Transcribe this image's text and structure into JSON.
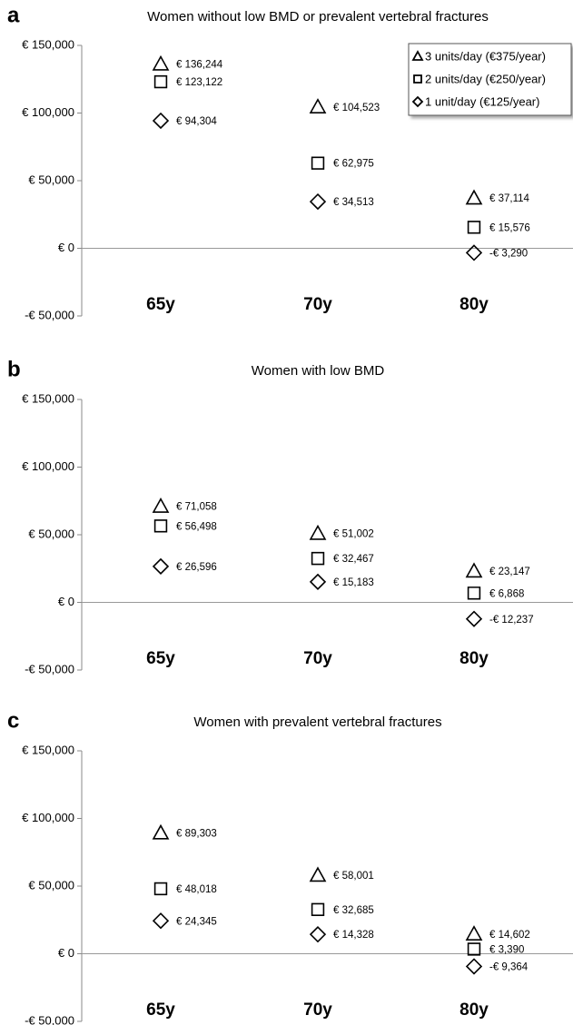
{
  "chart_data": [
    {
      "type": "scatter",
      "panel": "a",
      "title": "Women without low BMD or prevalent vertebral fractures",
      "categories": [
        "65y",
        "70y",
        "80y"
      ],
      "ylim": [
        -50000,
        150000
      ],
      "yticks": [
        {
          "value": -50000,
          "label": "-€ 50,000"
        },
        {
          "value": 0,
          "label": "€ 0"
        },
        {
          "value": 50000,
          "label": "€ 50,000"
        },
        {
          "value": 100000,
          "label": "€ 100,000"
        },
        {
          "value": 150000,
          "label": "€ 150,000"
        }
      ],
      "legend": "upper right",
      "series": [
        {
          "name": "3 units/day (€375/year)",
          "marker": "triangle",
          "color": "#000000",
          "values": [
            136244,
            104523,
            37114
          ],
          "value_labels": [
            "€ 136,244",
            "€ 104,523",
            "€ 37,114"
          ]
        },
        {
          "name": "2 units/day (€250/year)",
          "marker": "square",
          "color": "#000000",
          "values": [
            123122,
            62975,
            15576
          ],
          "value_labels": [
            "€ 123,122",
            "€ 62,975",
            "€ 15,576"
          ]
        },
        {
          "name": "1 unit/day (€125/year)",
          "marker": "diamond",
          "color": "#000000",
          "values": [
            94304,
            34513,
            -3290
          ],
          "value_labels": [
            "€ 94,304",
            "€ 34,513",
            "-€ 3,290"
          ]
        }
      ]
    },
    {
      "type": "scatter",
      "panel": "b",
      "title": "Women with low BMD",
      "categories": [
        "65y",
        "70y",
        "80y"
      ],
      "ylim": [
        -50000,
        150000
      ],
      "yticks": [
        {
          "value": -50000,
          "label": "-€ 50,000"
        },
        {
          "value": 0,
          "label": "€ 0"
        },
        {
          "value": 50000,
          "label": "€ 50,000"
        },
        {
          "value": 100000,
          "label": "€ 100,000"
        },
        {
          "value": 150000,
          "label": "€ 150,000"
        }
      ],
      "series": [
        {
          "marker": "triangle",
          "color": "#000000",
          "values": [
            71058,
            51002,
            23147
          ],
          "value_labels": [
            "€ 71,058",
            "€ 51,002",
            "€ 23,147"
          ]
        },
        {
          "marker": "square",
          "color": "#000000",
          "values": [
            56498,
            32467,
            6868
          ],
          "value_labels": [
            "€ 56,498",
            "€ 32,467",
            "€ 6,868"
          ]
        },
        {
          "marker": "diamond",
          "color": "#000000",
          "values": [
            26596,
            15183,
            -12237
          ],
          "value_labels": [
            "€ 26,596",
            "€ 15,183",
            "-€ 12,237"
          ]
        }
      ]
    },
    {
      "type": "scatter",
      "panel": "c",
      "title": "Women with prevalent vertebral fractures",
      "categories": [
        "65y",
        "70y",
        "80y"
      ],
      "ylim": [
        -50000,
        150000
      ],
      "yticks": [
        {
          "value": -50000,
          "label": "-€ 50,000"
        },
        {
          "value": 0,
          "label": "€ 0"
        },
        {
          "value": 50000,
          "label": "€ 50,000"
        },
        {
          "value": 100000,
          "label": "€ 100,000"
        },
        {
          "value": 150000,
          "label": "€ 150,000"
        }
      ],
      "series": [
        {
          "marker": "triangle",
          "color": "#000000",
          "values": [
            89303,
            58001,
            14602
          ],
          "value_labels": [
            "€ 89,303",
            "€ 58,001",
            "€ 14,602"
          ]
        },
        {
          "marker": "square",
          "color": "#000000",
          "values": [
            48018,
            32685,
            3390
          ],
          "value_labels": [
            "€ 48,018",
            "€ 32,685",
            "€ 3,390"
          ]
        },
        {
          "marker": "diamond",
          "color": "#000000",
          "values": [
            24345,
            14328,
            -9364
          ],
          "value_labels": [
            "€ 24,345",
            "€ 14,328",
            "-€ 9,364"
          ]
        }
      ]
    }
  ]
}
